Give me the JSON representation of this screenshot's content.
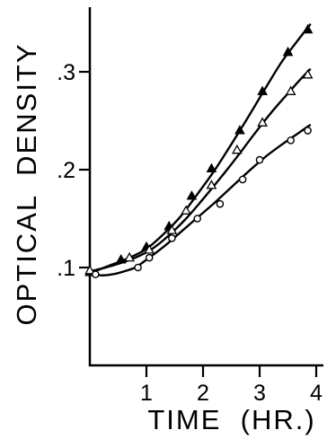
{
  "chart_data": {
    "type": "scatter",
    "title": "",
    "xlabel": "TIME  (HR.)",
    "ylabel": "OPTICAL  DENSITY",
    "xlim": [
      0,
      4.3
    ],
    "ylim": [
      0.0,
      0.36
    ],
    "xticks": [
      1,
      2,
      3,
      4
    ],
    "xtick_labels": [
      "1",
      "2",
      "3",
      "4"
    ],
    "yticks": [
      0.1,
      0.2,
      0.3
    ],
    "ytick_labels": [
      ".1",
      ".2",
      ".3"
    ],
    "grid": false,
    "legend": "none",
    "series": [
      {
        "marker": "filled-triangle",
        "color": "#000000",
        "points": [
          [
            0.0,
            0.095
          ],
          [
            0.55,
            0.108
          ],
          [
            1.0,
            0.121
          ],
          [
            1.4,
            0.142
          ],
          [
            1.8,
            0.173
          ],
          [
            2.15,
            0.201
          ],
          [
            2.65,
            0.24
          ],
          [
            3.05,
            0.28
          ],
          [
            3.5,
            0.32
          ],
          [
            3.85,
            0.343
          ]
        ],
        "curve": [
          [
            0.0,
            0.094
          ],
          [
            0.3,
            0.101
          ],
          [
            0.7,
            0.11
          ],
          [
            1.0,
            0.119
          ],
          [
            1.3,
            0.134
          ],
          [
            1.6,
            0.152
          ],
          [
            1.9,
            0.175
          ],
          [
            2.2,
            0.199
          ],
          [
            2.5,
            0.226
          ],
          [
            2.8,
            0.254
          ],
          [
            3.1,
            0.283
          ],
          [
            3.4,
            0.311
          ],
          [
            3.7,
            0.334
          ],
          [
            3.9,
            0.349
          ]
        ]
      },
      {
        "marker": "open-triangle",
        "color": "#000000",
        "points": [
          [
            0.0,
            0.097
          ],
          [
            0.7,
            0.11
          ],
          [
            1.05,
            0.118
          ],
          [
            1.45,
            0.138
          ],
          [
            1.7,
            0.158
          ],
          [
            2.15,
            0.184
          ],
          [
            2.6,
            0.22
          ],
          [
            3.05,
            0.248
          ],
          [
            3.55,
            0.28
          ],
          [
            3.85,
            0.297
          ]
        ],
        "curve": [
          [
            0.0,
            0.096
          ],
          [
            0.4,
            0.102
          ],
          [
            0.8,
            0.11
          ],
          [
            1.1,
            0.119
          ],
          [
            1.4,
            0.133
          ],
          [
            1.7,
            0.15
          ],
          [
            2.0,
            0.17
          ],
          [
            2.3,
            0.191
          ],
          [
            2.6,
            0.213
          ],
          [
            2.9,
            0.236
          ],
          [
            3.2,
            0.258
          ],
          [
            3.5,
            0.278
          ],
          [
            3.7,
            0.291
          ],
          [
            3.9,
            0.303
          ]
        ]
      },
      {
        "marker": "open-circle",
        "color": "#000000",
        "points": [
          [
            0.1,
            0.093
          ],
          [
            0.85,
            0.1
          ],
          [
            1.05,
            0.11
          ],
          [
            1.45,
            0.13
          ],
          [
            1.9,
            0.15
          ],
          [
            2.3,
            0.165
          ],
          [
            2.7,
            0.19
          ],
          [
            3.0,
            0.21
          ],
          [
            3.55,
            0.23
          ],
          [
            3.85,
            0.24
          ]
        ],
        "curve": [
          [
            0.0,
            0.094
          ],
          [
            0.2,
            0.092
          ],
          [
            0.4,
            0.093
          ],
          [
            0.6,
            0.096
          ],
          [
            0.8,
            0.1
          ],
          [
            1.0,
            0.108
          ],
          [
            1.3,
            0.121
          ],
          [
            1.6,
            0.136
          ],
          [
            1.9,
            0.151
          ],
          [
            2.2,
            0.166
          ],
          [
            2.5,
            0.182
          ],
          [
            2.8,
            0.198
          ],
          [
            3.1,
            0.213
          ],
          [
            3.4,
            0.226
          ],
          [
            3.7,
            0.238
          ],
          [
            3.9,
            0.246
          ]
        ]
      }
    ]
  }
}
